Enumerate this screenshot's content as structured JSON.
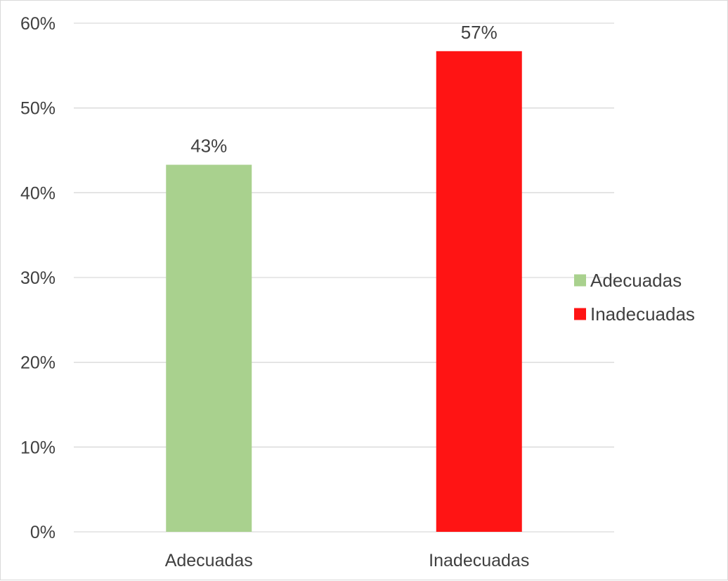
{
  "chart_data": {
    "type": "bar",
    "categories": [
      "Adecuadas",
      "Inadecuadas"
    ],
    "values": [
      43.3,
      56.7
    ],
    "data_labels": [
      "43%",
      "57%"
    ],
    "colors": [
      "#a9d18e",
      "#ff1414"
    ],
    "ylim": [
      0,
      60
    ],
    "y_ticks": [
      0,
      10,
      20,
      30,
      40,
      50,
      60
    ],
    "y_tick_labels": [
      "0%",
      "10%",
      "20%",
      "30%",
      "40%",
      "50%",
      "60%"
    ],
    "grid": true,
    "legend": {
      "placement": "right",
      "entries": [
        {
          "label": "Adecuadas",
          "color": "#a9d18e"
        },
        {
          "label": "Inadecuadas",
          "color": "#ff1414"
        }
      ]
    },
    "gridline_color": "#d9d9d9",
    "text_color": "#404040"
  }
}
